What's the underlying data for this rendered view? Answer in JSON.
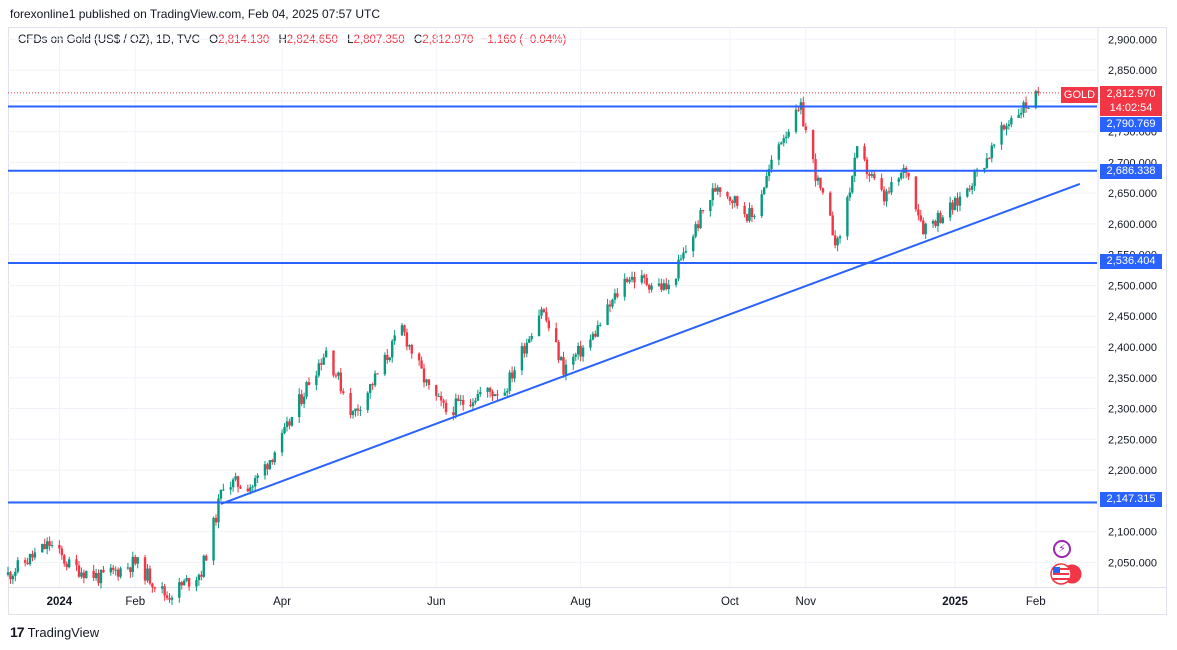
{
  "header": {
    "publisher": "forexonline1 published on TradingView.com, Feb 04, 2025 07:57 UTC"
  },
  "symbol": {
    "name": "CFDs on Gold (US$ / OZ), 1D, TVC",
    "o_label": "O",
    "o_value": "2,814.130",
    "h_label": "H",
    "h_value": "2,824.650",
    "l_label": "L",
    "l_value": "2,807.350",
    "c_label": "C",
    "c_value": "2,812.970",
    "change": "−1.160 (−0.04%)"
  },
  "tags": {
    "gold": "GOLD",
    "last_price": "2,812.970",
    "countdown": "14:02:54",
    "levels": [
      "2,790.769",
      "2,686.338",
      "2,536.404",
      "2,147.315"
    ]
  },
  "footer": {
    "brand": "TradingView",
    "logo_mark": "17"
  },
  "colors": {
    "up": "#089981",
    "down": "#f23645",
    "level_line": "#2962ff",
    "trend_line": "#2962ff"
  },
  "chart_data": {
    "type": "candlestick",
    "ylim": [
      2010,
      2920
    ],
    "y_ticks": [
      "2,900.000",
      "2,850.000",
      "2,800.000",
      "2,750.000",
      "2,700.000",
      "2,650.000",
      "2,600.000",
      "2,550.000",
      "2,500.000",
      "2,450.000",
      "2,400.000",
      "2,350.000",
      "2,300.000",
      "2,250.000",
      "2,200.000",
      "2,150.000",
      "2,100.000",
      "2,050.000"
    ],
    "y_tick_values": [
      2900,
      2850,
      2800,
      2750,
      2700,
      2650,
      2600,
      2550,
      2500,
      2450,
      2400,
      2350,
      2300,
      2250,
      2200,
      2150,
      2100,
      2050
    ],
    "x_ticks": [
      {
        "label": "2024",
        "date": "2024-01-01",
        "bold": true
      },
      {
        "label": "Feb",
        "date": "2024-02-01"
      },
      {
        "label": "Apr",
        "date": "2024-04-01"
      },
      {
        "label": "Jun",
        "date": "2024-06-03"
      },
      {
        "label": "Aug",
        "date": "2024-08-01"
      },
      {
        "label": "Oct",
        "date": "2024-10-01"
      },
      {
        "label": "Nov",
        "date": "2024-11-01"
      },
      {
        "label": "2025",
        "date": "2025-01-01",
        "bold": true
      },
      {
        "label": "Feb",
        "date": "2025-02-03"
      }
    ],
    "date_range": [
      "2023-12-11",
      "2025-02-28"
    ],
    "horizontal_levels": [
      2790.769,
      2686.338,
      2536.404,
      2147.315
    ],
    "last_price": 2812.97,
    "trendline": [
      {
        "date": "2024-03-07",
        "price": 2145
      },
      {
        "date": "2025-02-21",
        "price": 2665
      }
    ],
    "anchors": [
      [
        "2023-12-11",
        2030
      ],
      [
        "2023-12-28",
        2080
      ],
      [
        "2024-01-05",
        2045
      ],
      [
        "2024-01-18",
        2025
      ],
      [
        "2024-02-01",
        2050
      ],
      [
        "2024-02-14",
        1995
      ],
      [
        "2024-02-28",
        2035
      ],
      [
        "2024-03-05",
        2125
      ],
      [
        "2024-03-08",
        2180
      ],
      [
        "2024-03-20",
        2175
      ],
      [
        "2024-04-01",
        2250
      ],
      [
        "2024-04-12",
        2345
      ],
      [
        "2024-04-19",
        2395
      ],
      [
        "2024-04-30",
        2290
      ],
      [
        "2024-05-10",
        2355
      ],
      [
        "2024-05-20",
        2430
      ],
      [
        "2024-05-31",
        2330
      ],
      [
        "2024-06-07",
        2295
      ],
      [
        "2024-06-21",
        2325
      ],
      [
        "2024-07-01",
        2330
      ],
      [
        "2024-07-16",
        2465
      ],
      [
        "2024-07-25",
        2365
      ],
      [
        "2024-08-05",
        2410
      ],
      [
        "2024-08-20",
        2515
      ],
      [
        "2024-09-06",
        2495
      ],
      [
        "2024-09-20",
        2620
      ],
      [
        "2024-09-26",
        2665
      ],
      [
        "2024-10-10",
        2610
      ],
      [
        "2024-10-22",
        2740
      ],
      [
        "2024-10-30",
        2785
      ],
      [
        "2024-11-06",
        2665
      ],
      [
        "2024-11-14",
        2565
      ],
      [
        "2024-11-22",
        2715
      ],
      [
        "2024-12-03",
        2640
      ],
      [
        "2024-12-12",
        2690
      ],
      [
        "2024-12-19",
        2595
      ],
      [
        "2025-01-01",
        2630
      ],
      [
        "2025-01-16",
        2720
      ],
      [
        "2025-01-24",
        2775
      ],
      [
        "2025-02-03",
        2805
      ]
    ]
  }
}
